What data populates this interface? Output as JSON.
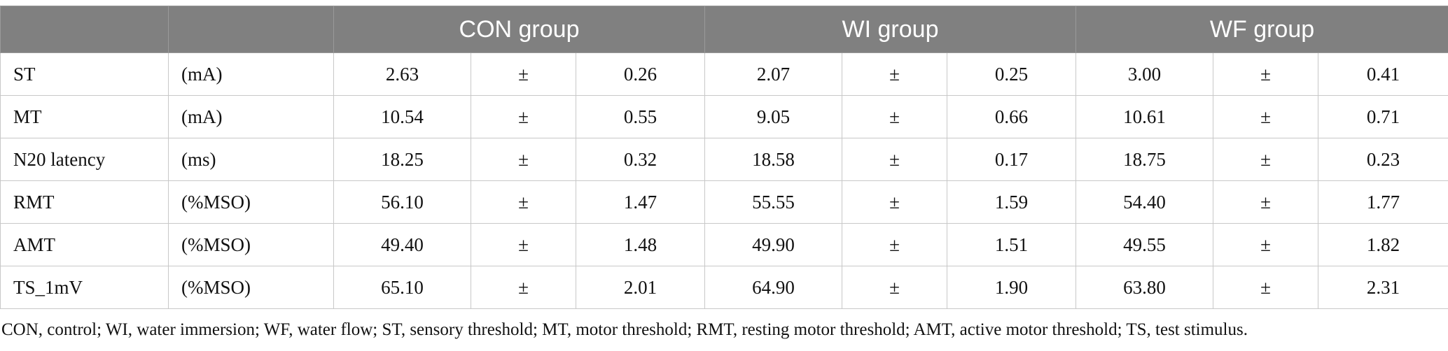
{
  "header": {
    "label_col": "",
    "unit_col": "",
    "groups": [
      "CON group",
      "WI group",
      "WF group"
    ]
  },
  "rows": [
    {
      "label": "ST",
      "unit": "(mA)",
      "con": {
        "mean": "2.63",
        "pm": "±",
        "se": "0.26"
      },
      "wi": {
        "mean": "2.07",
        "pm": "±",
        "se": "0.25"
      },
      "wf": {
        "mean": "3.00",
        "pm": "±",
        "se": "0.41"
      }
    },
    {
      "label": "MT",
      "unit": "(mA)",
      "con": {
        "mean": "10.54",
        "pm": "±",
        "se": "0.55"
      },
      "wi": {
        "mean": "9.05",
        "pm": "±",
        "se": "0.66"
      },
      "wf": {
        "mean": "10.61",
        "pm": "±",
        "se": "0.71"
      }
    },
    {
      "label": "N20 latency",
      "unit": "(ms)",
      "con": {
        "mean": "18.25",
        "pm": "±",
        "se": "0.32"
      },
      "wi": {
        "mean": "18.58",
        "pm": "±",
        "se": "0.17"
      },
      "wf": {
        "mean": "18.75",
        "pm": "±",
        "se": "0.23"
      }
    },
    {
      "label": "RMT",
      "unit": "(%MSO)",
      "con": {
        "mean": "56.10",
        "pm": "±",
        "se": "1.47"
      },
      "wi": {
        "mean": "55.55",
        "pm": "±",
        "se": "1.59"
      },
      "wf": {
        "mean": "54.40",
        "pm": "±",
        "se": "1.77"
      }
    },
    {
      "label": "AMT",
      "unit": "(%MSO)",
      "con": {
        "mean": "49.40",
        "pm": "±",
        "se": "1.48"
      },
      "wi": {
        "mean": "49.90",
        "pm": "±",
        "se": "1.51"
      },
      "wf": {
        "mean": "49.55",
        "pm": "±",
        "se": "1.82"
      }
    },
    {
      "label": "TS_1mV",
      "unit": "(%MSO)",
      "con": {
        "mean": "65.10",
        "pm": "±",
        "se": "2.01"
      },
      "wi": {
        "mean": "64.90",
        "pm": "±",
        "se": "1.90"
      },
      "wf": {
        "mean": "63.80",
        "pm": "±",
        "se": "2.31"
      }
    }
  ],
  "footnote": "CON, control; WI, water immersion; WF, water flow; ST, sensory threshold; MT, motor threshold; RMT, resting motor threshold; AMT, active motor threshold; TS, test stimulus.",
  "colors": {
    "header_bg": "#808080",
    "header_text": "#ffffff",
    "border": "#c8c8c8"
  }
}
